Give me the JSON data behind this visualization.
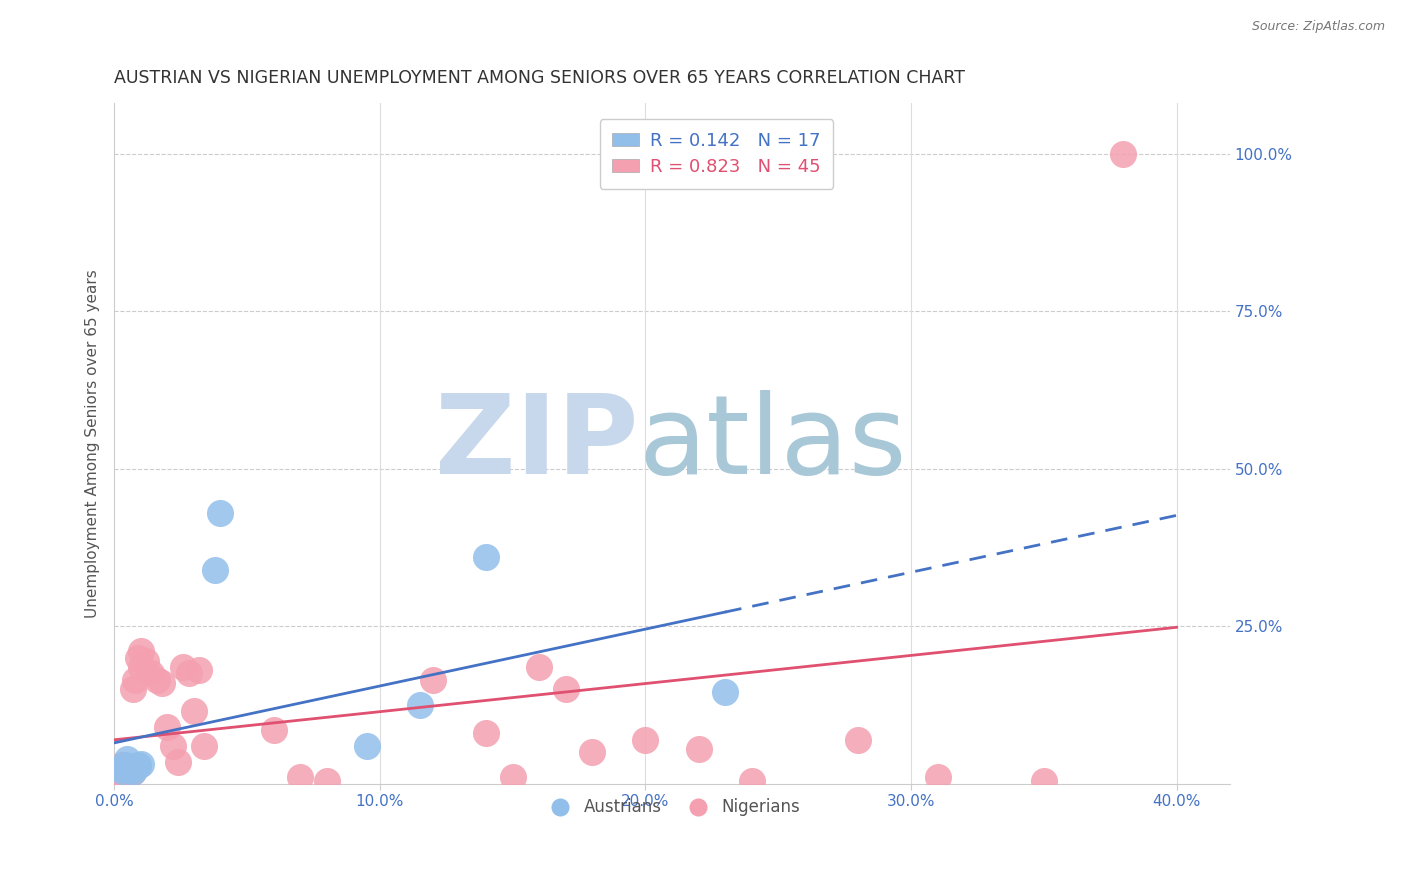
{
  "title": "AUSTRIAN VS NIGERIAN UNEMPLOYMENT AMONG SENIORS OVER 65 YEARS CORRELATION CHART",
  "source": "Source: ZipAtlas.com",
  "ylabel": "Unemployment Among Seniors over 65 years",
  "ytick_labels": [
    "100.0%",
    "75.0%",
    "50.0%",
    "25.0%"
  ],
  "ytick_values": [
    1.0,
    0.75,
    0.5,
    0.25
  ],
  "xtick_labels": [
    "0.0%",
    "10.0%",
    "20.0%",
    "30.0%",
    "40.0%"
  ],
  "xtick_values": [
    0.0,
    0.1,
    0.2,
    0.3,
    0.4
  ],
  "xlim": [
    0.0,
    0.42
  ],
  "ylim": [
    0.0,
    1.08
  ],
  "austrians_R": "0.142",
  "austrians_N": "17",
  "nigerians_R": "0.823",
  "nigerians_N": "45",
  "austrian_color": "#92BFEA",
  "nigerian_color": "#F4A0B0",
  "austrian_line_color": "#4472C4",
  "nigerian_line_color": "#E05070",
  "legend_label_austrians": "Austrians",
  "legend_label_nigerians": "Nigerians",
  "watermark_zip": "ZIP",
  "watermark_atlas": "atlas",
  "watermark_color_zip": "#C8D8EC",
  "watermark_color_atlas": "#A8C8D8",
  "austrian_scatter_x": [
    0.002,
    0.003,
    0.004,
    0.005,
    0.005,
    0.006,
    0.007,
    0.008,
    0.009,
    0.009,
    0.01,
    0.038,
    0.04,
    0.095,
    0.115,
    0.14,
    0.23
  ],
  "austrian_scatter_y": [
    0.025,
    0.02,
    0.03,
    0.028,
    0.04,
    0.022,
    0.018,
    0.025,
    0.03,
    0.028,
    0.032,
    0.34,
    0.43,
    0.06,
    0.125,
    0.36,
    0.145
  ],
  "nigerian_scatter_x": [
    0.001,
    0.002,
    0.002,
    0.003,
    0.003,
    0.004,
    0.004,
    0.005,
    0.005,
    0.006,
    0.006,
    0.007,
    0.007,
    0.008,
    0.009,
    0.01,
    0.01,
    0.012,
    0.014,
    0.016,
    0.018,
    0.02,
    0.022,
    0.024,
    0.026,
    0.028,
    0.03,
    0.032,
    0.034,
    0.06,
    0.07,
    0.08,
    0.12,
    0.14,
    0.15,
    0.16,
    0.17,
    0.18,
    0.2,
    0.22,
    0.24,
    0.28,
    0.31,
    0.35,
    0.38
  ],
  "nigerian_scatter_y": [
    0.02,
    0.015,
    0.025,
    0.01,
    0.03,
    0.018,
    0.012,
    0.02,
    0.025,
    0.015,
    0.022,
    0.15,
    0.018,
    0.165,
    0.2,
    0.21,
    0.185,
    0.195,
    0.175,
    0.165,
    0.16,
    0.09,
    0.06,
    0.035,
    0.185,
    0.175,
    0.115,
    0.18,
    0.06,
    0.085,
    0.01,
    0.005,
    0.165,
    0.08,
    0.01,
    0.185,
    0.15,
    0.05,
    0.07,
    0.055,
    0.005,
    0.07,
    0.01,
    0.005,
    1.0
  ]
}
